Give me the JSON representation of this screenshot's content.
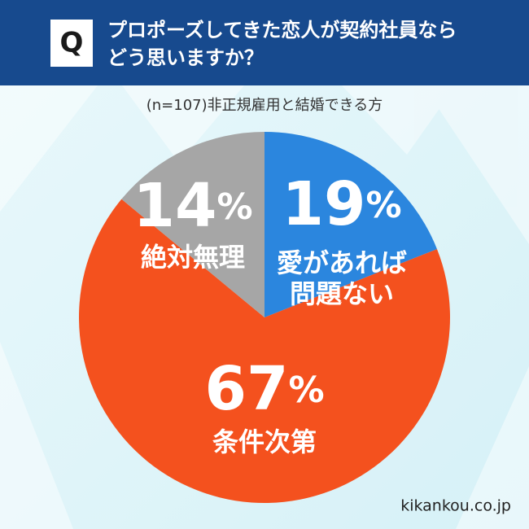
{
  "chart_data": {
    "type": "pie",
    "badge": "Q",
    "title": "プロポーズしてきた恋人が契約社員なら\nどう思いますか？",
    "subtitle": "(n=107)非正規雇用と結婚できる方",
    "categories": [
      "愛があれば\n問題ない",
      "条件次第",
      "絶対無理"
    ],
    "values": [
      19,
      67,
      14
    ],
    "value_labels": [
      "19%",
      "67%",
      "14%"
    ],
    "colors": [
      "#2b86de",
      "#f4511e",
      "#a6a6a6"
    ],
    "source": "kikankou.co.jp"
  }
}
